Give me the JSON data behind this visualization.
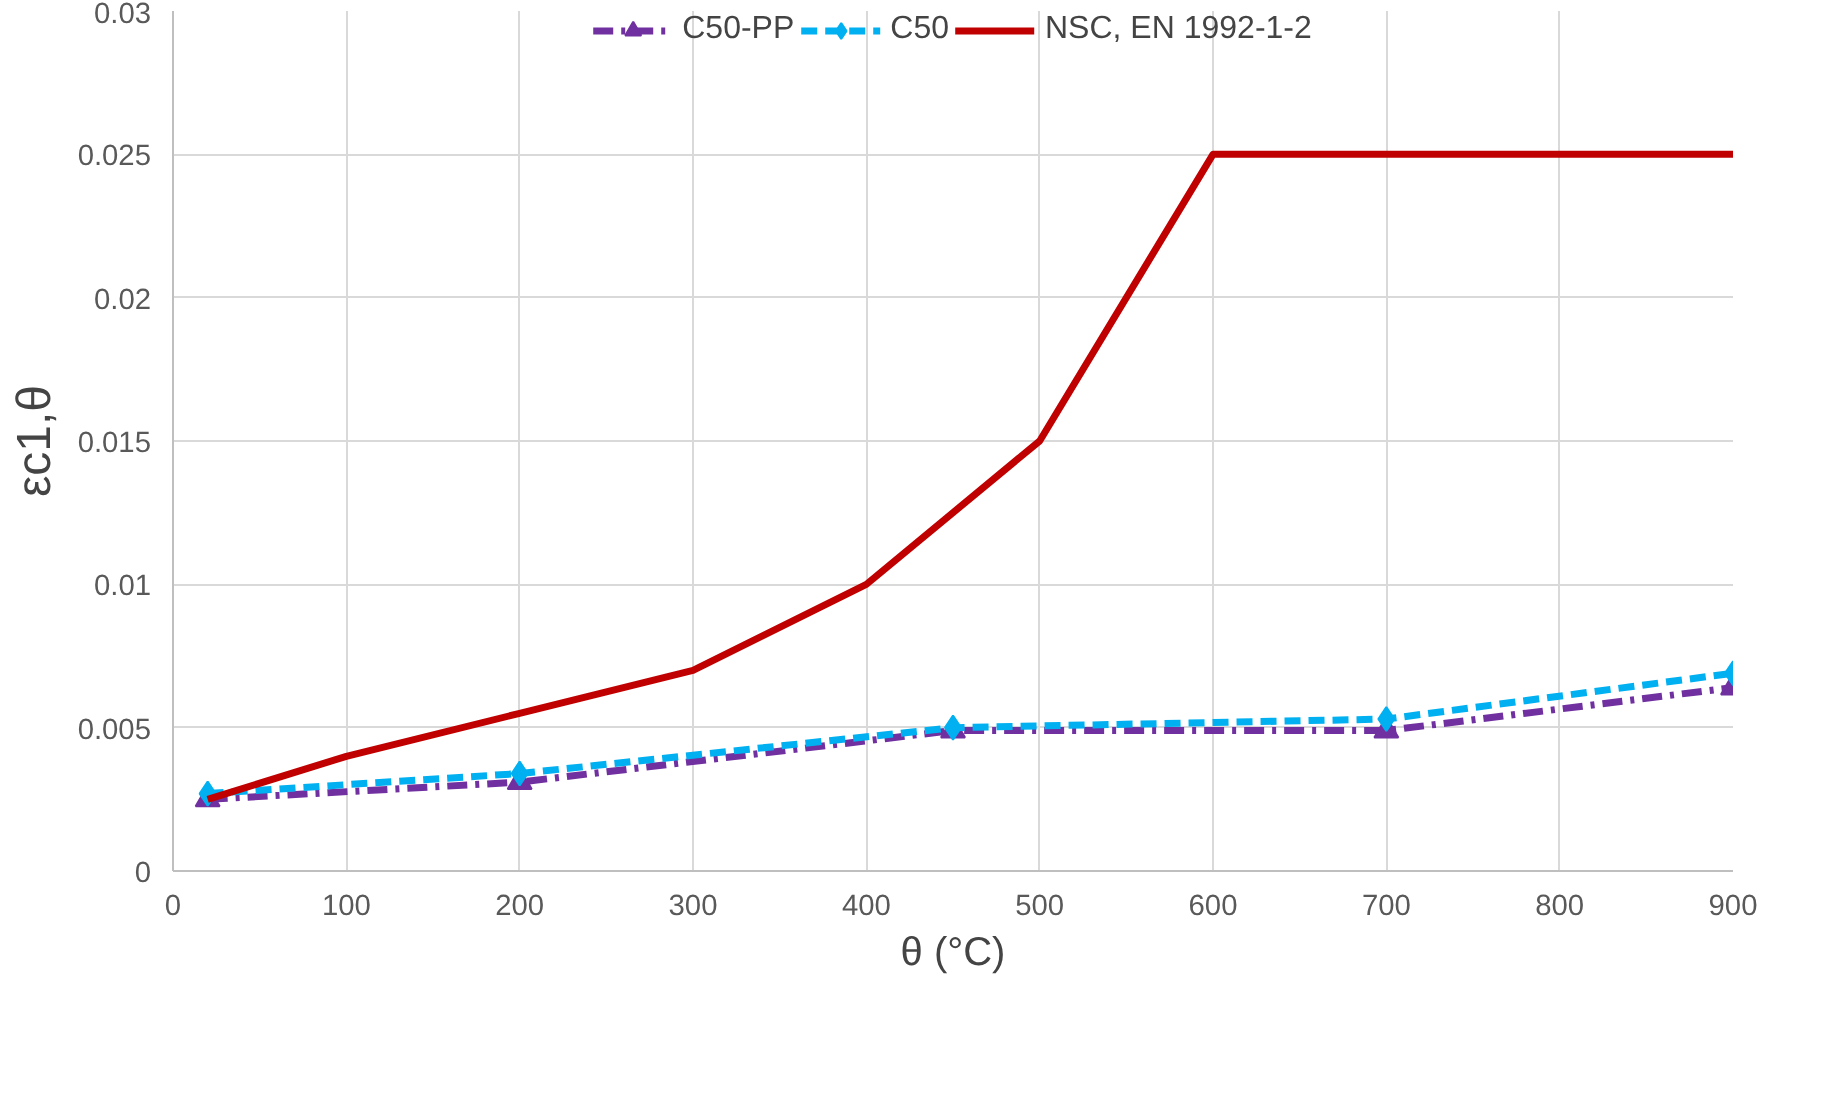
{
  "chart_data": {
    "type": "line",
    "xlabel": "θ (°C)",
    "ylabel": "εc1,θ",
    "xlim": [
      0,
      900
    ],
    "xticks": [
      0,
      100,
      200,
      300,
      400,
      500,
      600,
      700,
      800,
      900
    ],
    "ylim": [
      0,
      0.03
    ],
    "yticks": [
      0,
      0.005,
      0.01,
      0.015,
      0.02,
      0.025,
      0.03
    ],
    "grid": true,
    "legend": "top",
    "series": [
      {
        "name": "C50-PP",
        "color": "#7030a0",
        "marker": "triangle",
        "line_style": "dashdot",
        "x": [
          20,
          200,
          450,
          700,
          900
        ],
        "values": [
          0.0025,
          0.0031,
          0.0049,
          0.0049,
          0.0064
        ]
      },
      {
        "name": "C50",
        "color": "#00b0f0",
        "marker": "diamond",
        "line_style": "dashed",
        "x": [
          20,
          200,
          450,
          700,
          900
        ],
        "values": [
          0.0027,
          0.0034,
          0.005,
          0.0053,
          0.0069
        ]
      },
      {
        "name": "NSC, EN 1992-1-2",
        "color": "#c00000",
        "marker": "none",
        "line_style": "solid",
        "x": [
          20,
          100,
          200,
          300,
          400,
          500,
          600,
          700,
          800,
          900
        ],
        "values": [
          0.0025,
          0.004,
          0.0055,
          0.007,
          0.01,
          0.015,
          0.025,
          0.025,
          0.025,
          0.025
        ]
      }
    ]
  }
}
